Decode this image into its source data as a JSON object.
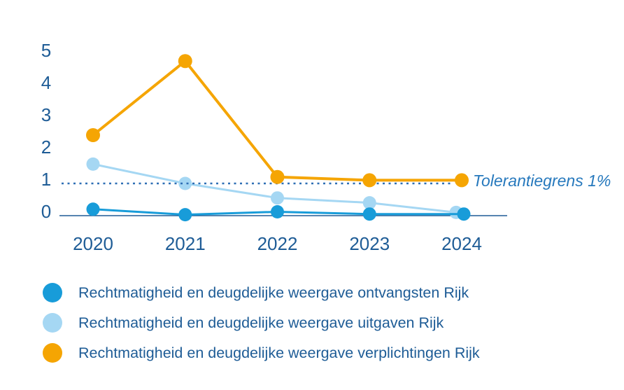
{
  "chart": {
    "type": "line",
    "title": "",
    "x_labels": [
      "2020",
      "2021",
      "2022",
      "2023",
      "2024"
    ],
    "y_tick_labels": [
      "0",
      "1",
      "2",
      "3",
      "4",
      "5"
    ],
    "ylim": [
      0,
      5
    ],
    "grid": false,
    "legend_position": "bottom-left",
    "axis_color": "#1e5c96",
    "tick_label_color": "#1e5c96",
    "legend_text_color": "#1e5c96",
    "series": [
      {
        "slug": "ontvangsten",
        "name": "Rechtmatigheid en deugdelijke weergave ontvangsten Rijk",
        "color": "#189cd9",
        "values": [
          0.2,
          0.03,
          0.12,
          0.05,
          0.05
        ],
        "line_width": 3,
        "dot_radius": 9.5,
        "x_dodge": [
          0,
          0,
          0,
          0,
          3
        ],
        "z": 3
      },
      {
        "slug": "uitgaven",
        "name": "Rechtmatigheid en deugdelijke weergave uitgaven Rijk",
        "color": "#a5d7f3",
        "values": [
          1.6,
          1.0,
          0.55,
          0.4,
          0.1
        ],
        "line_width": 3,
        "dot_radius": 9.5,
        "x_dodge": [
          0,
          0,
          0,
          0,
          -8
        ],
        "z": 1
      },
      {
        "slug": "verplichtingen",
        "name": "Rechtmatigheid en deugdelijke weergave verplichtingen Rijk",
        "color": "#f5a503",
        "values": [
          2.5,
          4.8,
          1.2,
          1.1,
          1.1
        ],
        "line_width": 4,
        "dot_radius": 10,
        "x_dodge": [
          0,
          0,
          0,
          0,
          0
        ],
        "z": 4
      }
    ],
    "reference_line": {
      "value": 1,
      "label": "Tolerantiegrens 1%",
      "style": "dotted",
      "color": "#2e6fb5",
      "label_color": "#2779bd",
      "z": 2
    }
  }
}
